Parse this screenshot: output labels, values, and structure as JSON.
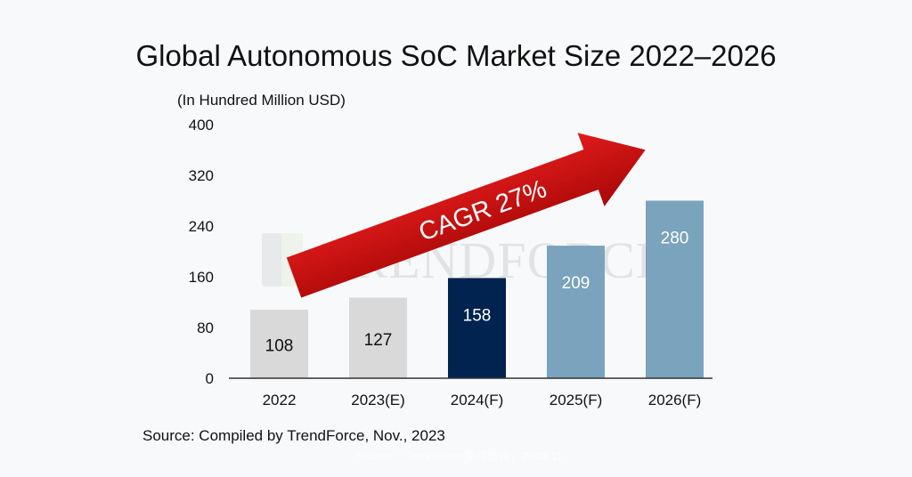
{
  "chart_data": {
    "type": "bar",
    "title": "Global Autonomous SoC Market Size 2022–2026",
    "ylabel": "(In Hundred Million USD)",
    "xlabel": "",
    "categories": [
      "2022",
      "2023(E)",
      "2024(F)",
      "2025(F)",
      "2026(F)"
    ],
    "values": [
      108,
      127,
      158,
      209,
      280
    ],
    "value_labels": [
      "108",
      "127",
      "158",
      "209",
      "280"
    ],
    "bar_colors": [
      "#d9d9d9",
      "#d9d9d9",
      "#002350",
      "#7aa3bd",
      "#7aa3bd"
    ],
    "label_colors": [
      "#111111",
      "#111111",
      "#ffffff",
      "#ffffff",
      "#ffffff"
    ],
    "ylim": [
      0,
      400
    ],
    "yticks": [
      0,
      80,
      160,
      240,
      320,
      400
    ],
    "ytick_labels": [
      "0",
      "80",
      "160",
      "240",
      "320",
      "400"
    ],
    "grid": false,
    "annotation": "CAGR 27%",
    "annotation_color": "#d01010",
    "watermark": "TRENDFORCE"
  },
  "source": "Source: Compiled by TrendForce, Nov., 2023",
  "faint_footer": "Source：TrendForce集邦咨询，2023.11"
}
